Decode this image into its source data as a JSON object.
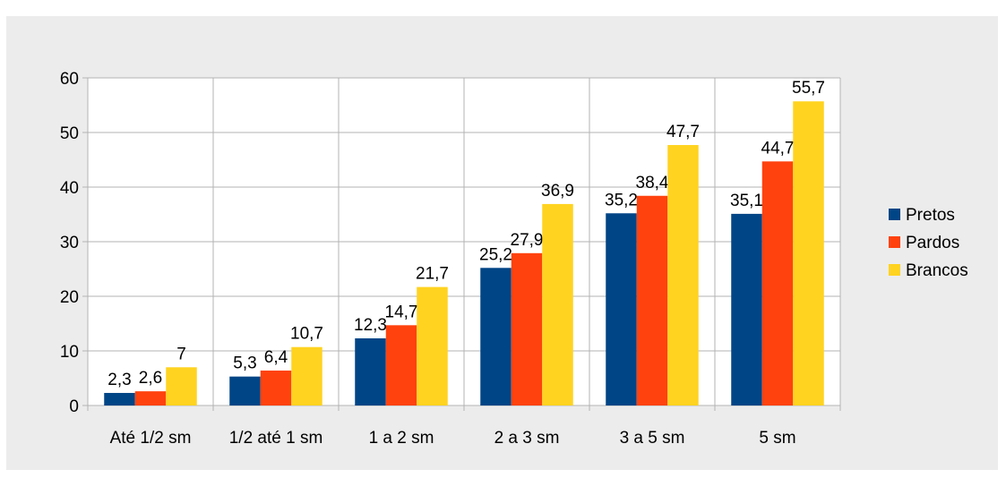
{
  "chart_data": {
    "type": "bar",
    "categories": [
      "Até 1/2 sm",
      "1/2 até 1 sm",
      "1 a 2 sm",
      "2 a 3 sm",
      "3 a 5 sm",
      "5 sm"
    ],
    "series": [
      {
        "name": "Pretos",
        "color": "#004586",
        "values": [
          2.3,
          5.3,
          12.3,
          25.2,
          35.2,
          35.1
        ],
        "labels": [
          "2,3",
          "5,3",
          "12,3",
          "25,2",
          "35,2",
          "35,1"
        ]
      },
      {
        "name": "Pardos",
        "color": "#ff420e",
        "values": [
          2.6,
          6.4,
          14.7,
          27.9,
          38.4,
          44.7
        ],
        "labels": [
          "2,6",
          "6,4",
          "14,7",
          "27,9",
          "38,4",
          "44,7"
        ]
      },
      {
        "name": "Brancos",
        "color": "#ffd320",
        "values": [
          7,
          10.7,
          21.7,
          36.9,
          47.7,
          55.7
        ],
        "labels": [
          "7",
          "10,7",
          "21,7",
          "36,9",
          "47,7",
          "55,7"
        ]
      }
    ],
    "yticks": [
      "0",
      "10",
      "20",
      "30",
      "40",
      "50",
      "60"
    ],
    "ylim": [
      0,
      60
    ],
    "title": "",
    "xlabel": "",
    "ylabel": "",
    "grid": true,
    "legend_position": "right",
    "background": "#ececec",
    "plot_background": "#ffffff",
    "grid_color": "#b3b3b3"
  }
}
